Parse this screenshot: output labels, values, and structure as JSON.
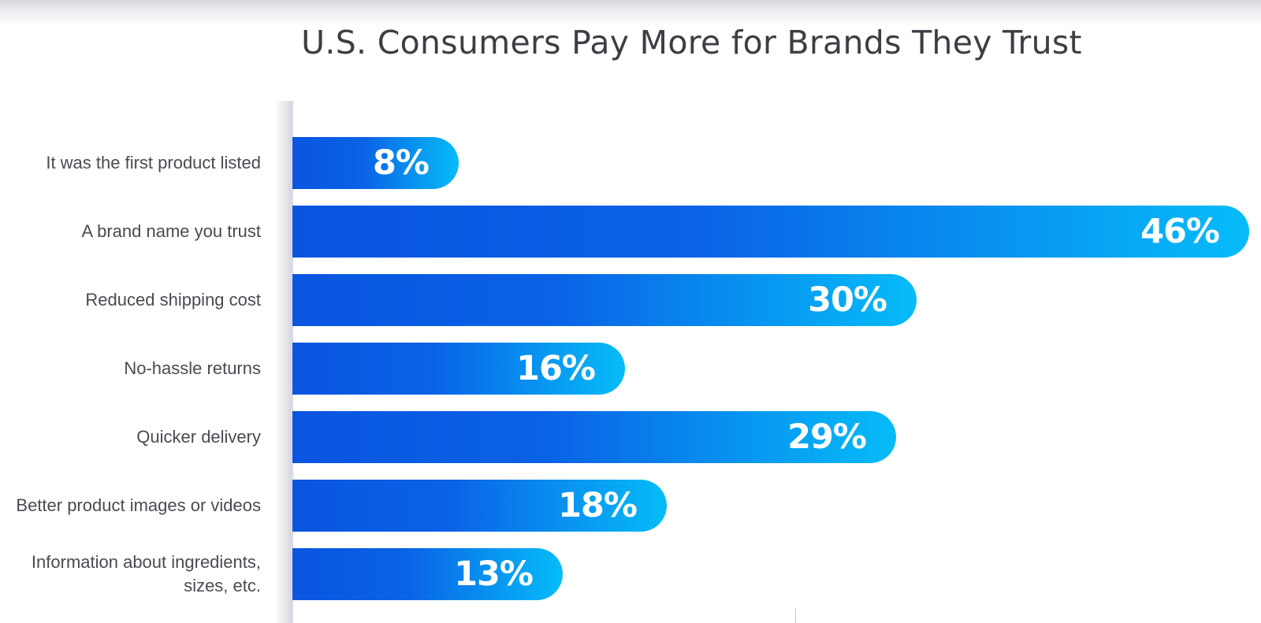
{
  "chart_data": {
    "type": "bar",
    "orientation": "horizontal",
    "title": "U.S. Consumers Pay More for Brands They Trust",
    "categories": [
      "It was the first product listed",
      "A brand name you trust",
      "Reduced shipping cost",
      "No-hassle returns",
      "Quicker delivery",
      "Better product images or videos",
      "Information about ingredients, sizes, etc."
    ],
    "values": [
      8,
      46,
      30,
      16,
      29,
      18,
      13
    ],
    "value_labels": [
      "8%",
      "46%",
      "30%",
      "16%",
      "29%",
      "18%",
      "13%"
    ],
    "unit": "%",
    "grid": false,
    "legend": "none",
    "colors": {
      "bar_gradient_start": "#0a55e0",
      "bar_gradient_mid": "#0a62e6",
      "bar_gradient_end": "#06bcf8",
      "value_text": "#ffffff",
      "label_text": "#4a4a52",
      "title_text": "#3d3d44"
    }
  }
}
